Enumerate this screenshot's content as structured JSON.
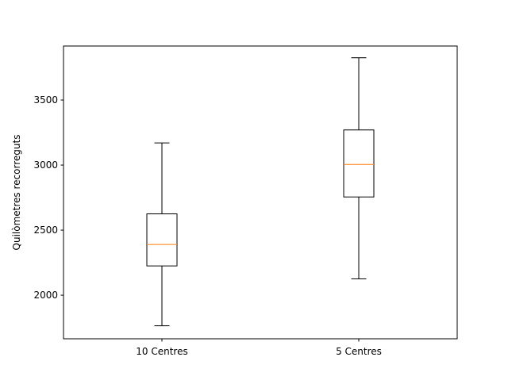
{
  "chart_data": {
    "type": "boxplot",
    "title": "",
    "xlabel": "",
    "ylabel": "Quilòmetres recorreguts",
    "categories": [
      "10 Centres",
      "5 Centres"
    ],
    "boxes": [
      {
        "label": "10 Centres",
        "whisker_low": 1765,
        "q1": 2225,
        "median": 2390,
        "q3": 2625,
        "whisker_high": 3170
      },
      {
        "label": "5 Centres",
        "whisker_low": 2125,
        "q1": 2755,
        "median": 3005,
        "q3": 3270,
        "whisker_high": 3825
      }
    ],
    "yticks": [
      2000,
      2500,
      3000,
      3500
    ],
    "ylim": [
      1665,
      3915
    ],
    "grid": false,
    "legend": "none",
    "colors": {
      "box": "#000000",
      "median": "#ff7f0e",
      "axes": "#000000",
      "background": "#ffffff"
    }
  }
}
